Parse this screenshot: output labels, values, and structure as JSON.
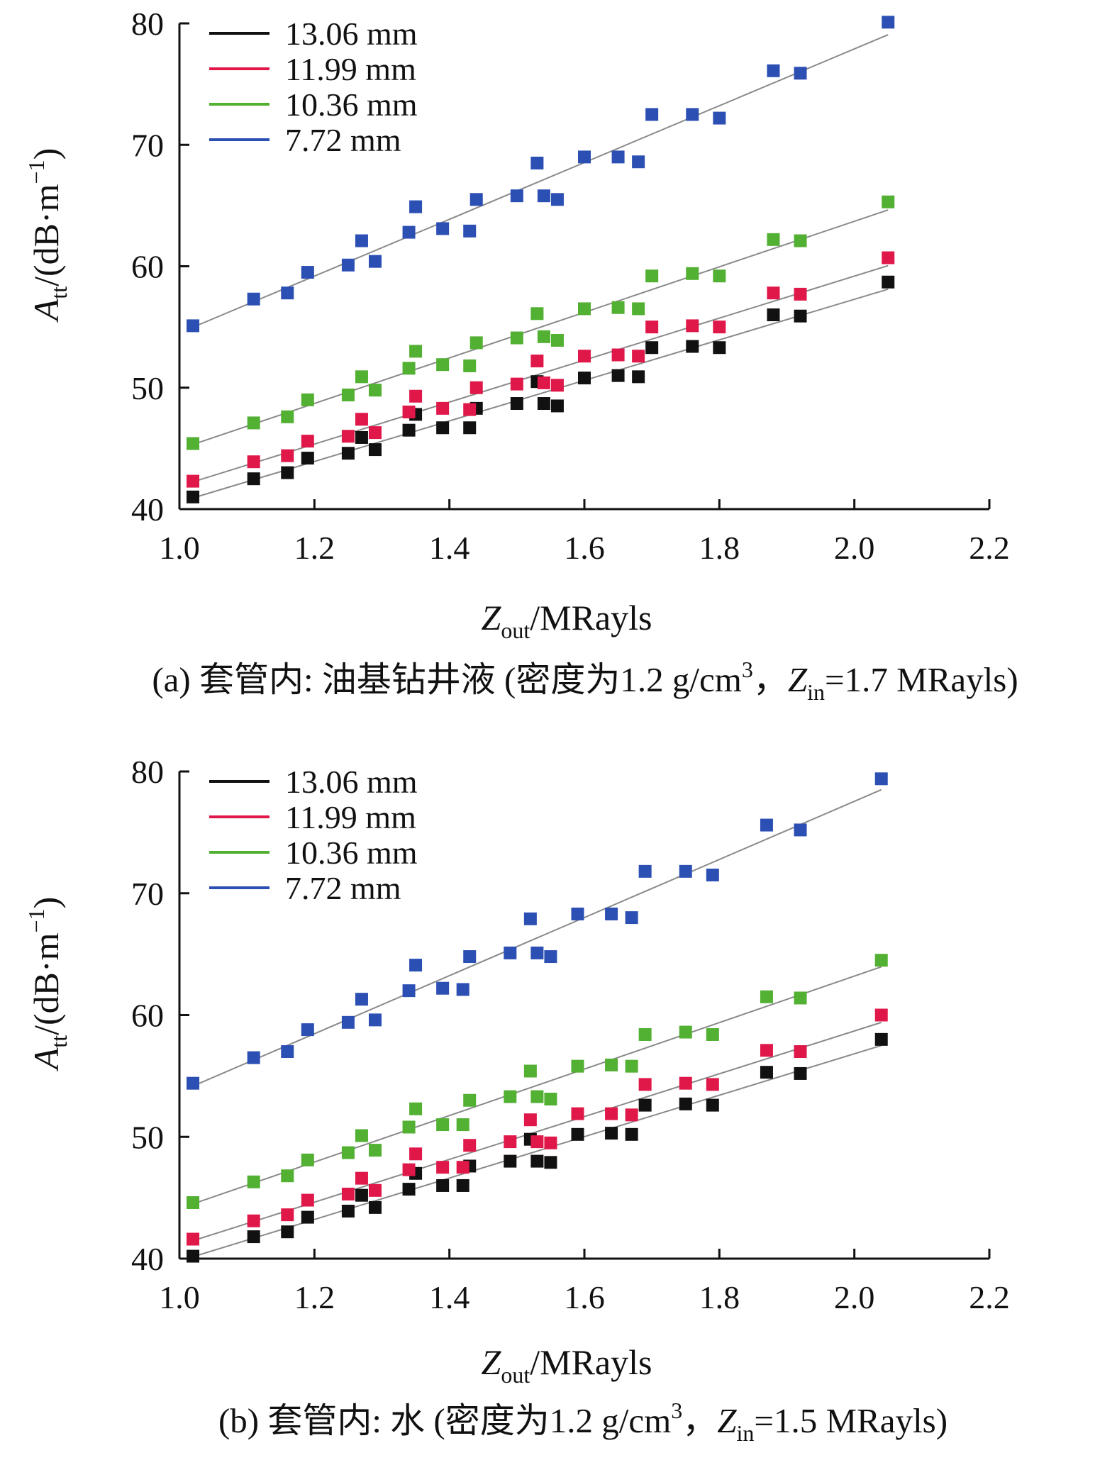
{
  "chart_data": [
    {
      "type": "scatter",
      "xlabel": {
        "base": "Z",
        "sub": "out",
        "rest": "/MRayls"
      },
      "ylabel": {
        "base": "A",
        "sub": "tt",
        "unit_pre": "/(dB·m",
        "unit_sup": "−1",
        "unit_post": ")"
      },
      "caption": {
        "pre": "(a) 套管内: 油基钻井液 (密度为1.2 g/cm",
        "sup": "3",
        "mid": "，",
        "z": "Z",
        "sub": "in",
        "post": "=1.7 MRayls)"
      },
      "xlim": [
        1.0,
        2.2
      ],
      "ylim": [
        40,
        80
      ],
      "xticks": [
        "1.0",
        "1.2",
        "1.4",
        "1.6",
        "1.8",
        "2.0",
        "2.2"
      ],
      "yticks": [
        "40",
        "50",
        "60",
        "70",
        "80"
      ],
      "grid": false,
      "legend_position": "top-left",
      "x": [
        1.02,
        1.11,
        1.16,
        1.19,
        1.25,
        1.27,
        1.29,
        1.34,
        1.35,
        1.39,
        1.43,
        1.44,
        1.5,
        1.53,
        1.54,
        1.56,
        1.6,
        1.65,
        1.68,
        1.7,
        1.76,
        1.8,
        1.88,
        1.92,
        2.05
      ],
      "series": [
        {
          "name": "13.06 mm",
          "color": "#111111",
          "values": [
            41.0,
            42.5,
            43.0,
            44.2,
            44.6,
            45.9,
            44.9,
            46.5,
            47.8,
            46.7,
            46.7,
            48.3,
            48.7,
            50.5,
            48.7,
            48.5,
            50.8,
            51.0,
            50.9,
            53.3,
            53.4,
            53.3,
            56.0,
            55.9,
            58.7
          ]
        },
        {
          "name": "11.99 mm",
          "color": "#e0184a",
          "values": [
            42.3,
            43.9,
            44.4,
            45.6,
            46.0,
            47.4,
            46.3,
            48.0,
            49.3,
            48.3,
            48.2,
            50.0,
            50.3,
            52.2,
            50.4,
            50.2,
            52.6,
            52.7,
            52.6,
            55.0,
            55.1,
            55.0,
            57.8,
            57.7,
            60.7
          ]
        },
        {
          "name": "10.36 mm",
          "color": "#52b032",
          "values": [
            45.4,
            47.1,
            47.6,
            49.0,
            49.4,
            50.9,
            49.8,
            51.6,
            53.0,
            51.9,
            51.8,
            53.7,
            54.1,
            56.1,
            54.2,
            53.9,
            56.5,
            56.6,
            56.5,
            59.2,
            59.4,
            59.2,
            62.2,
            62.1,
            65.3
          ]
        },
        {
          "name": "7.72 mm",
          "color": "#2c4fb3",
          "values": [
            55.1,
            57.3,
            57.8,
            59.5,
            60.1,
            62.1,
            60.4,
            62.8,
            64.9,
            63.1,
            62.9,
            65.5,
            65.8,
            68.5,
            65.8,
            65.5,
            69.0,
            69.0,
            68.6,
            72.5,
            72.5,
            72.2,
            76.1,
            75.9,
            80.1
          ]
        }
      ]
    },
    {
      "type": "scatter",
      "xlabel": {
        "base": "Z",
        "sub": "out",
        "rest": "/MRayls"
      },
      "ylabel": {
        "base": "A",
        "sub": "tt",
        "unit_pre": "/(dB·m",
        "unit_sup": "−1",
        "unit_post": ")"
      },
      "caption": {
        "pre": "(b) 套管内: 水 (密度为1.2 g/cm",
        "sup": "3",
        "mid": "，",
        "z": "Z",
        "sub": "in",
        "post": "=1.5 MRayls)"
      },
      "xlim": [
        1.0,
        2.2
      ],
      "ylim": [
        40,
        80
      ],
      "xticks": [
        "1.0",
        "1.2",
        "1.4",
        "1.6",
        "1.8",
        "2.0",
        "2.2"
      ],
      "yticks": [
        "40",
        "50",
        "60",
        "70",
        "80"
      ],
      "grid": false,
      "legend_position": "top-left",
      "x": [
        1.02,
        1.11,
        1.16,
        1.19,
        1.25,
        1.27,
        1.29,
        1.34,
        1.35,
        1.39,
        1.42,
        1.43,
        1.49,
        1.52,
        1.53,
        1.55,
        1.59,
        1.64,
        1.67,
        1.69,
        1.75,
        1.79,
        1.87,
        1.92,
        2.04
      ],
      "series": [
        {
          "name": "13.06 mm",
          "color": "#111111",
          "values": [
            40.2,
            41.8,
            42.2,
            43.4,
            43.9,
            45.2,
            44.2,
            45.7,
            47.0,
            46.0,
            46.0,
            47.6,
            48.0,
            49.8,
            48.0,
            47.9,
            50.2,
            50.3,
            50.2,
            52.6,
            52.7,
            52.6,
            55.3,
            55.2,
            58.0
          ]
        },
        {
          "name": "11.99 mm",
          "color": "#e0184a",
          "values": [
            41.6,
            43.1,
            43.6,
            44.8,
            45.3,
            46.6,
            45.6,
            47.3,
            48.6,
            47.5,
            47.5,
            49.3,
            49.6,
            51.4,
            49.6,
            49.5,
            51.9,
            51.9,
            51.8,
            54.3,
            54.4,
            54.3,
            57.1,
            57.0,
            60.0
          ]
        },
        {
          "name": "10.36 mm",
          "color": "#52b032",
          "values": [
            44.6,
            46.3,
            46.8,
            48.1,
            48.7,
            50.1,
            48.9,
            50.8,
            52.3,
            51.0,
            51.0,
            53.0,
            53.3,
            55.4,
            53.3,
            53.1,
            55.8,
            55.9,
            55.8,
            58.4,
            58.6,
            58.4,
            61.5,
            61.4,
            64.5
          ]
        },
        {
          "name": "7.72 mm",
          "color": "#2c4fb3",
          "values": [
            54.4,
            56.5,
            57.0,
            58.8,
            59.4,
            61.3,
            59.6,
            62.0,
            64.1,
            62.2,
            62.1,
            64.8,
            65.1,
            67.9,
            65.1,
            64.8,
            68.3,
            68.3,
            68.0,
            71.8,
            71.8,
            71.5,
            75.6,
            75.2,
            79.4
          ]
        }
      ]
    }
  ]
}
